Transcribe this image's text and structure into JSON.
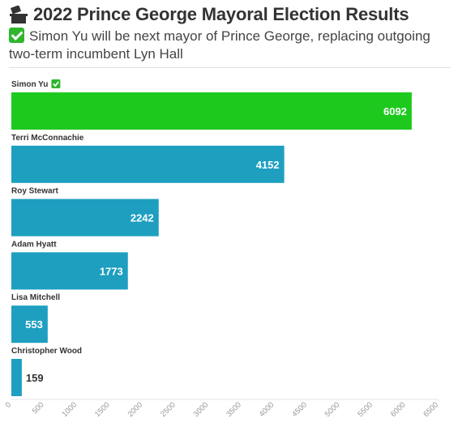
{
  "header": {
    "title": "2022 Prince George Mayoral Election Results",
    "subtitle": "Simon Yu will be next mayor of Prince George, replacing outgoing two-term incumbent Lyn Hall",
    "title_icon": "ballot-box-icon",
    "subtitle_icon": "check-mark-icon"
  },
  "colors": {
    "winner": "#1ec91e",
    "other": "#1e9fc0",
    "check": "#2fb62f"
  },
  "chart_data": {
    "type": "bar",
    "orientation": "horizontal",
    "title": "2022 Prince George Mayoral Election Results",
    "categories": [
      "Simon Yu",
      "Terri McConnachie",
      "Roy Stewart",
      "Adam Hyatt",
      "Lisa Mitchell",
      "Christopher Wood"
    ],
    "values": [
      6092,
      4152,
      2242,
      1773,
      553,
      159
    ],
    "winner_index": 0,
    "xlim": [
      0,
      6500
    ],
    "x_ticks": [
      0,
      500,
      1000,
      1500,
      2000,
      2500,
      3000,
      3500,
      4000,
      4500,
      5000,
      5500,
      6000,
      6500
    ],
    "grid": false,
    "legend": "none",
    "value_labels": true
  }
}
